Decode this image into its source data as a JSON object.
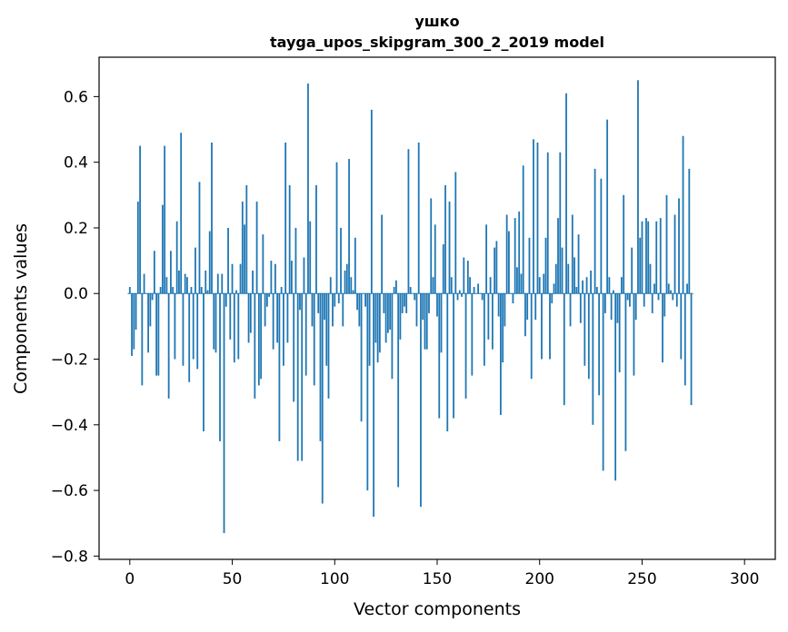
{
  "chart_data": {
    "type": "bar",
    "title": "ушко",
    "subtitle": "tayga_upos_skipgram_300_2_2019 model",
    "xlabel": "Vector components",
    "ylabel": "Components values",
    "xlim": [
      -15,
      315
    ],
    "ylim": [
      -0.81,
      0.72
    ],
    "xticks": [
      0,
      50,
      100,
      150,
      200,
      250,
      300
    ],
    "yticks": [
      -0.8,
      -0.6,
      -0.4,
      -0.2,
      0.0,
      0.2,
      0.4,
      0.6
    ],
    "ytick_labels": [
      "−0.8",
      "−0.6",
      "−0.4",
      "−0.2",
      "0.0",
      "0.2",
      "0.4",
      "0.6"
    ],
    "xtick_labels": [
      "0",
      "50",
      "100",
      "150",
      "200",
      "250",
      "300"
    ],
    "grid": false,
    "bar_color": "#1f77b4",
    "values": [
      0.02,
      -0.19,
      -0.17,
      -0.11,
      0.28,
      0.45,
      -0.28,
      0.06,
      0.0,
      -0.18,
      -0.1,
      -0.02,
      0.13,
      -0.25,
      -0.25,
      0.02,
      0.27,
      0.45,
      0.05,
      -0.32,
      0.13,
      0.02,
      -0.2,
      0.22,
      0.07,
      0.49,
      -0.22,
      0.06,
      0.05,
      -0.27,
      0.02,
      -0.2,
      0.14,
      -0.23,
      0.34,
      0.02,
      -0.42,
      0.07,
      0.01,
      0.19,
      0.46,
      -0.17,
      -0.18,
      0.06,
      -0.45,
      0.06,
      -0.73,
      -0.04,
      0.2,
      -0.14,
      0.09,
      -0.21,
      0.01,
      -0.2,
      0.09,
      0.28,
      0.21,
      0.33,
      -0.15,
      -0.12,
      0.07,
      -0.32,
      0.28,
      -0.28,
      -0.26,
      0.18,
      -0.1,
      -0.04,
      -0.01,
      0.1,
      -0.17,
      0.09,
      -0.15,
      -0.45,
      0.02,
      -0.22,
      0.46,
      -0.15,
      0.33,
      0.1,
      -0.33,
      0.2,
      -0.51,
      -0.05,
      -0.51,
      0.11,
      -0.25,
      0.64,
      0.22,
      -0.1,
      -0.28,
      0.33,
      -0.06,
      -0.45,
      -0.64,
      -0.08,
      -0.22,
      -0.32,
      0.05,
      -0.1,
      -0.04,
      0.4,
      -0.03,
      0.2,
      -0.1,
      0.07,
      0.09,
      0.41,
      0.05,
      0.01,
      0.17,
      -0.05,
      -0.1,
      -0.39,
      0.0,
      -0.04,
      -0.6,
      -0.22,
      0.56,
      -0.68,
      -0.15,
      -0.21,
      -0.18,
      0.24,
      -0.06,
      -0.15,
      -0.12,
      -0.11,
      -0.26,
      0.02,
      0.04,
      -0.59,
      -0.14,
      -0.06,
      -0.04,
      -0.06,
      0.44,
      0.02,
      0.0,
      -0.02,
      -0.1,
      0.46,
      -0.65,
      -0.08,
      -0.17,
      -0.17,
      -0.06,
      0.29,
      0.05,
      0.21,
      -0.07,
      -0.38,
      -0.18,
      0.15,
      0.33,
      -0.42,
      0.28,
      0.05,
      -0.38,
      0.37,
      -0.02,
      0.01,
      -0.01,
      0.11,
      -0.32,
      0.1,
      0.05,
      -0.25,
      0.02,
      0.0,
      0.03,
      0.0,
      -0.02,
      -0.22,
      0.21,
      -0.14,
      0.05,
      -0.17,
      0.14,
      0.16,
      -0.07,
      -0.37,
      -0.21,
      -0.1,
      0.24,
      0.19,
      0.0,
      -0.03,
      0.23,
      0.08,
      0.25,
      0.06,
      0.39,
      -0.13,
      -0.08,
      0.17,
      -0.26,
      0.47,
      -0.08,
      0.46,
      0.05,
      -0.2,
      0.06,
      0.17,
      0.43,
      -0.2,
      -0.03,
      0.03,
      0.09,
      0.23,
      0.43,
      0.14,
      -0.34,
      0.61,
      0.09,
      -0.1,
      0.24,
      0.11,
      0.02,
      0.18,
      -0.09,
      0.04,
      -0.22,
      0.05,
      -0.26,
      0.07,
      -0.4,
      0.38,
      0.02,
      -0.31,
      0.35,
      -0.54,
      -0.06,
      0.53,
      0.05,
      -0.08,
      0.01,
      -0.57,
      -0.09,
      -0.24,
      0.05,
      0.3,
      -0.48,
      -0.02,
      -0.04,
      0.14,
      -0.25,
      -0.08,
      0.65,
      0.17,
      0.22,
      -0.04,
      0.23,
      0.22,
      0.09,
      -0.06,
      0.03,
      0.22,
      -0.02,
      0.23,
      -0.21,
      -0.07,
      0.3,
      0.03,
      0.01,
      -0.02,
      0.24,
      -0.04,
      0.29,
      -0.2,
      0.48,
      -0.28,
      0.03,
      0.38,
      -0.34
    ]
  }
}
